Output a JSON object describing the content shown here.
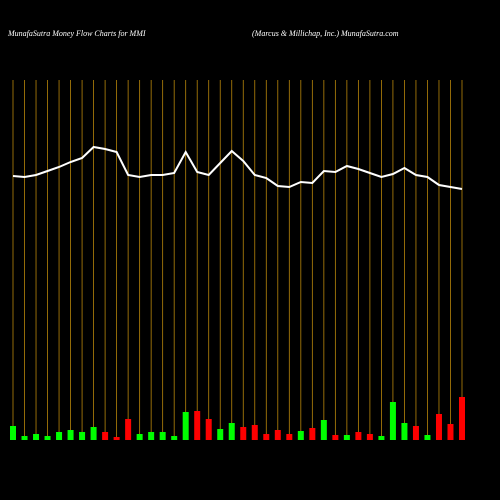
{
  "chart_data": {
    "type": "money-flow",
    "title": "MunafaSutra  Money Flow  Charts for MMI",
    "subtitle": "(Marcus & Millichap,  Inc.) MunafaSutra.com",
    "ylim": [
      0,
      440
    ],
    "grid_color": "#b8860b",
    "line_color": "#ffffff",
    "categories": [
      null,
      null,
      null,
      null,
      null,
      null,
      null,
      null,
      null,
      null,
      null,
      null,
      null,
      null,
      null,
      null,
      null,
      null,
      null,
      null,
      null,
      null,
      null,
      null,
      null,
      null,
      null,
      null,
      null,
      null,
      null,
      null,
      null,
      null,
      null,
      null,
      null,
      null,
      null,
      null
    ],
    "series": [
      {
        "type": "line",
        "values": [
          264,
          263,
          265,
          269,
          273,
          278,
          282,
          293,
          291,
          288,
          265,
          263,
          265,
          265,
          267,
          288,
          268,
          265,
          277,
          289,
          279,
          265,
          262,
          254,
          253,
          258,
          257,
          269,
          268,
          274,
          271,
          267,
          263,
          266,
          272,
          265,
          263,
          255,
          253,
          251
        ]
      },
      {
        "type": "bar",
        "values": [
          14,
          4,
          6,
          4,
          8,
          10,
          8,
          13,
          8,
          3,
          21,
          6,
          8,
          8,
          4,
          28,
          29,
          21,
          11,
          17,
          13,
          15,
          6,
          10,
          6,
          9,
          12,
          20,
          5,
          5,
          8,
          6,
          4,
          38,
          17,
          14,
          5,
          26,
          16,
          43
        ],
        "colors": [
          "#00ff00",
          "#00ff00",
          "#00ff00",
          "#00ff00",
          "#00ff00",
          "#00ff00",
          "#00ff00",
          "#00ff00",
          "#ff0000",
          "#ff0000",
          "#ff0000",
          "#00ff00",
          "#00ff00",
          "#00ff00",
          "#00ff00",
          "#00ff00",
          "#ff0000",
          "#ff0000",
          "#00ff00",
          "#00ff00",
          "#ff0000",
          "#ff0000",
          "#ff0000",
          "#ff0000",
          "#ff0000",
          "#00ff00",
          "#ff0000",
          "#00ff00",
          "#ff0000",
          "#00ff00",
          "#ff0000",
          "#ff0000",
          "#00ff00",
          "#00ff00",
          "#00ff00",
          "#ff0000",
          "#00ff00",
          "#ff0000",
          "#ff0000",
          "#ff0000"
        ]
      }
    ]
  }
}
